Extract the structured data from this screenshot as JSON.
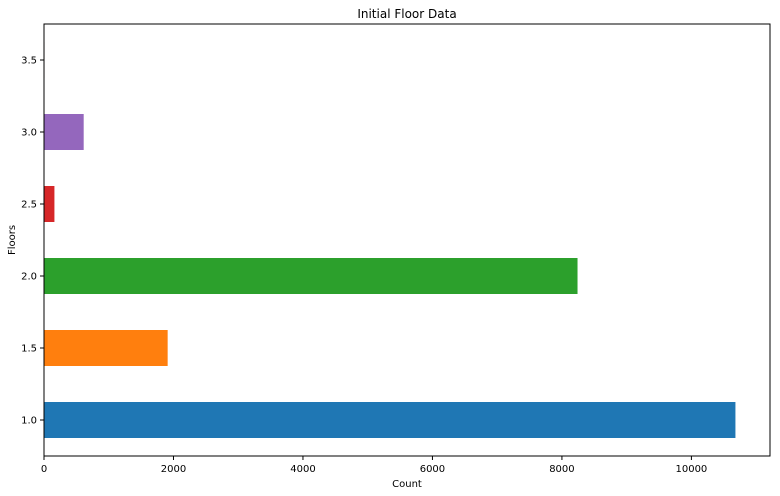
{
  "chart_data": {
    "type": "bar",
    "orientation": "horizontal",
    "title": "Initial Floor Data",
    "xlabel": "Count",
    "ylabel": "Floors",
    "categories": [
      "1.0",
      "1.5",
      "2.0",
      "2.5",
      "3.0",
      "3.5"
    ],
    "values": [
      10680,
      1910,
      8241,
      161,
      613,
      8
    ],
    "bar_colors": [
      "#1f77b4",
      "#ff7f0e",
      "#2ca02c",
      "#d62728",
      "#9467bd",
      "#8c564b"
    ],
    "xlim": [
      0,
      11214
    ],
    "xticks": [
      0,
      2000,
      4000,
      6000,
      8000,
      10000
    ],
    "grid": false,
    "legend": "none"
  }
}
